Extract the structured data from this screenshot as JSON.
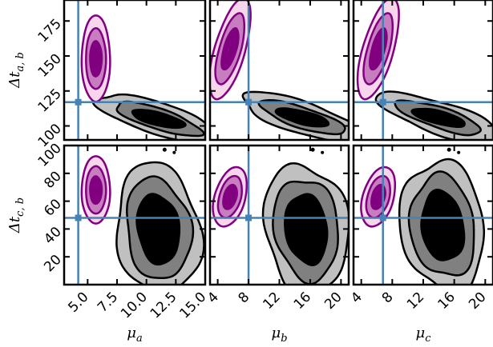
{
  "chart_data": {
    "type": "contour",
    "grid": false,
    "truth_color": "#4682b4",
    "prior_colors": [
      "#f7d6ec",
      "#c77dc0",
      "#800080"
    ],
    "posterior_colors": [
      "#c0c0c0",
      "#808080",
      "#000000"
    ],
    "row_labels": [
      {
        "text": "Δt",
        "sub": "a, b",
        "ylim": [
          90,
          190
        ],
        "ticks": [
          100,
          125,
          150,
          175
        ],
        "truth_y": 117
      },
      {
        "text": "Δt",
        "sub": "c, b",
        "ylim": [
          0,
          100
        ],
        "ticks": [
          20,
          40,
          60,
          80,
          100
        ],
        "truth_y": 48
      }
    ],
    "columns": [
      {
        "xlabel": "μ",
        "xsub": "a",
        "xlim": [
          3.0,
          15.0
        ],
        "ticks": [
          "5.0",
          "7.5",
          "10.0",
          "12.5",
          "15.0"
        ],
        "tick_values": [
          5.0,
          7.5,
          10.0,
          12.5,
          15.0
        ],
        "truth_x": 4.2,
        "prior": {
          "x": 5.7,
          "ya": 148,
          "sx_a": 0.55,
          "sy_a": 14,
          "yc": 68,
          "sx_c": 0.55,
          "sy_c": 11
        },
        "posterior_top": {
          "x": 11.0,
          "y": 105
        },
        "posterior_bottom": {
          "x": 11.0,
          "y": 40
        }
      },
      {
        "xlabel": "μ",
        "xsub": "b",
        "xlim": [
          3.0,
          21.0
        ],
        "ticks": [
          "4",
          "8",
          "12",
          "16",
          "20"
        ],
        "tick_values": [
          4,
          8,
          12,
          16,
          20
        ],
        "truth_x": 8.0,
        "prior": {
          "x": 5.6,
          "ya": 155,
          "sx_a": 0.9,
          "sy_a": 17,
          "yc": 63,
          "sx_c": 0.9,
          "sy_c": 10
        },
        "posterior_top": {
          "x": 15.0,
          "y": 106
        },
        "posterior_bottom": {
          "x": 15.5,
          "y": 40
        }
      },
      {
        "xlabel": "μ",
        "xsub": "c",
        "xlim": [
          3.0,
          21.0
        ],
        "ticks": [
          "4",
          "8",
          "12",
          "16",
          "20"
        ],
        "tick_values": [
          4,
          8,
          12,
          16,
          20
        ],
        "truth_x": 6.8,
        "prior": {
          "x": 6.2,
          "ya": 155,
          "sx_a": 0.9,
          "sy_a": 17,
          "yc": 63,
          "sx_c": 0.9,
          "sy_c": 10
        },
        "posterior_top": {
          "x": 14.0,
          "y": 106
        },
        "posterior_bottom": {
          "x": 14.5,
          "y": 42
        }
      }
    ]
  }
}
